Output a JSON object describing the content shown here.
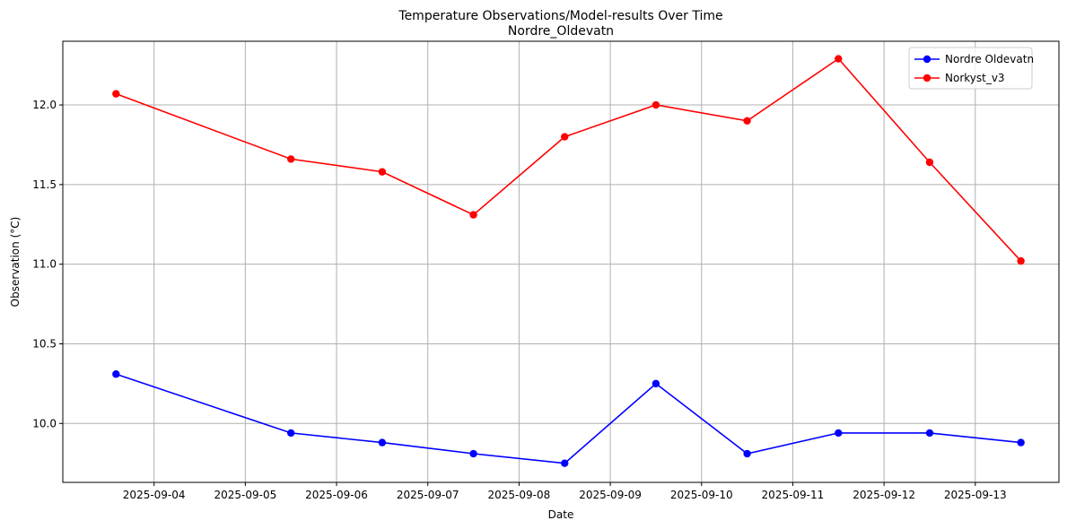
{
  "chart_data": {
    "type": "line",
    "title": "Temperature Observations/Model-results Over Time",
    "subtitle": "Nordre_Oldevatn",
    "xlabel": "Date",
    "ylabel": "Observation (°C)",
    "x": [
      "2025-09-03 14:00",
      "2025-09-05 12:00",
      "2025-09-06 12:00",
      "2025-09-07 12:00",
      "2025-09-08 12:00",
      "2025-09-09 12:00",
      "2025-09-10 12:00",
      "2025-09-11 12:00",
      "2025-09-12 12:00",
      "2025-09-13 12:00"
    ],
    "xlim": [
      "2025-09-03 00:00",
      "2025-09-13 22:00"
    ],
    "xticks": [
      "2025-09-04",
      "2025-09-05",
      "2025-09-06",
      "2025-09-07",
      "2025-09-08",
      "2025-09-09",
      "2025-09-10",
      "2025-09-11",
      "2025-09-12",
      "2025-09-13"
    ],
    "ylim": [
      9.63,
      12.4
    ],
    "yticks": [
      "10.0",
      "10.5",
      "11.0",
      "11.5",
      "12.0"
    ],
    "grid": true,
    "legend_position": "top-right",
    "series": [
      {
        "name": "Nordre Oldevatn",
        "color": "#0000ff",
        "values": [
          10.31,
          9.94,
          9.88,
          9.81,
          9.75,
          10.25,
          9.81,
          9.94,
          9.94,
          9.88
        ]
      },
      {
        "name": "Norkyst_v3",
        "color": "#ff0000",
        "values": [
          12.07,
          11.66,
          11.58,
          11.31,
          11.8,
          12.0,
          11.9,
          12.29,
          11.64,
          11.02
        ]
      }
    ]
  }
}
